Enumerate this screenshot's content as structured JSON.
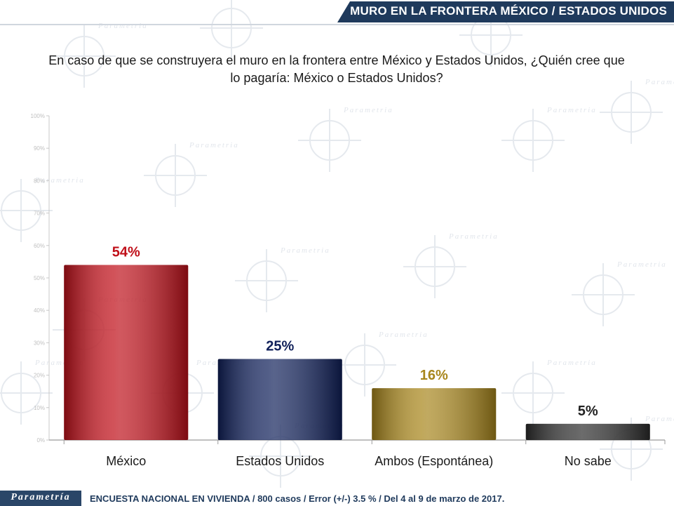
{
  "header": {
    "title": "MURO EN LA FRONTERA MÉXICO / ESTADOS UNIDOS"
  },
  "question": {
    "line1": "En caso de que se construyera el muro en la frontera entre México y Estados Unidos, ¿Quién cree que",
    "line2": "lo pagaría: México o Estados Unidos?"
  },
  "watermark": {
    "text": "Parametria"
  },
  "footer": {
    "logo": "Parametría",
    "text": "ENCUESTA NACIONAL EN VIVIENDA / 800 casos / Error (+/-) 3.5 % / Del 4 al 9 de marzo de 2017."
  },
  "colors": {
    "header_band": "#1f3a5c",
    "mexico": "#c0101a",
    "estados_unidos": "#10205a",
    "ambos": "#a8861c",
    "no_sabe": "#2c2c2c"
  },
  "chart_data": {
    "type": "bar",
    "categories": [
      "México",
      "Estados Unidos",
      "Ambos (Espontánea)",
      "No sabe"
    ],
    "values": [
      54,
      25,
      16,
      5
    ],
    "value_labels": [
      "54%",
      "25%",
      "16%",
      "5%"
    ],
    "label_colors": [
      "#c0101a",
      "#10205a",
      "#a8861c",
      "#222222"
    ],
    "bar_colors": [
      "#c0101a",
      "#10205a",
      "#a8861c",
      "#2c2c2c"
    ],
    "title": "",
    "xlabel": "",
    "ylabel": "",
    "ylim": [
      0,
      100
    ],
    "yticks": [
      "0%",
      "10%",
      "20%",
      "30%",
      "40%",
      "50%",
      "60%",
      "70%",
      "80%",
      "90%",
      "100%"
    ],
    "grid": false,
    "legend": "none"
  }
}
